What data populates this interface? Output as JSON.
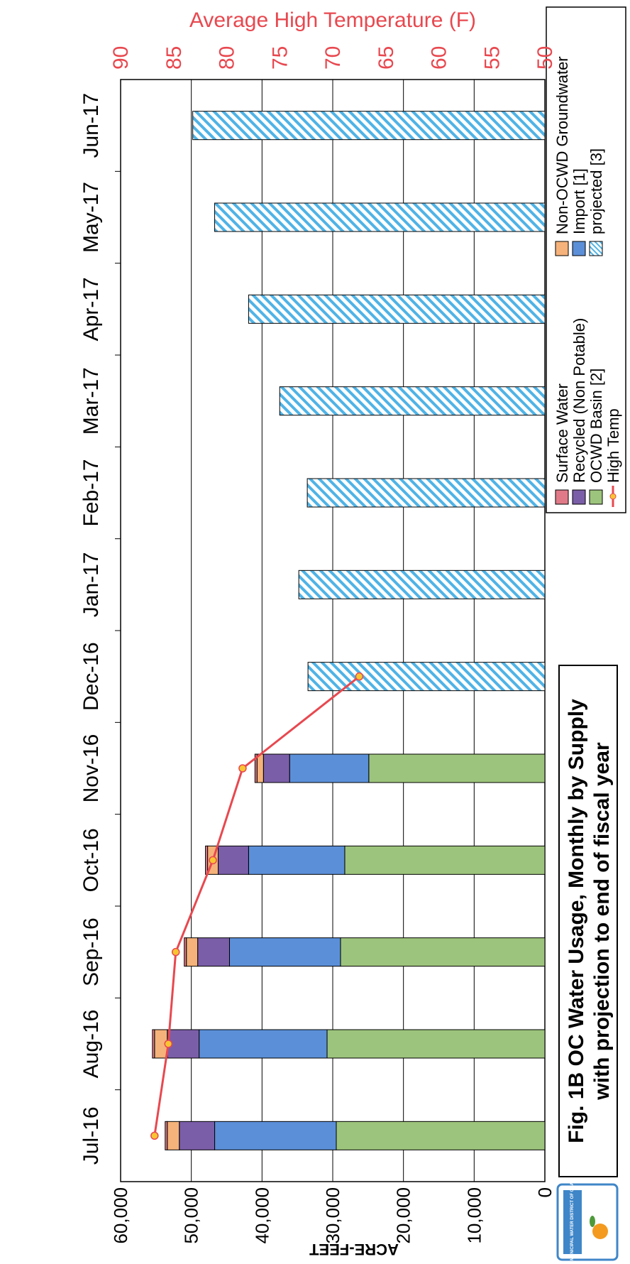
{
  "logo": {
    "text": "MUNICIPAL WATER DISTRICT OF ORANGE COUNTY"
  },
  "chart_data": {
    "type": "bar",
    "title": "Fig. 1B  OC Water Usage, Monthly by Supply",
    "subtitle": "with projection to end of fiscal year",
    "ylabel": "ACRE-FEET",
    "y2label": "Average High Temperature (F)",
    "ylim": [
      0,
      60000
    ],
    "y2lim": [
      50,
      90
    ],
    "yticks": [
      "0",
      "10,000",
      "20,000",
      "30,000",
      "40,000",
      "50,000",
      "60,000"
    ],
    "y2ticks": [
      "50",
      "55",
      "60",
      "65",
      "70",
      "75",
      "80",
      "85",
      "90"
    ],
    "categories": [
      "Jul-16",
      "Aug-16",
      "Sep-16",
      "Oct-16",
      "Nov-16",
      "Dec-16",
      "Jan-17",
      "Feb-17",
      "Mar-17",
      "Apr-17",
      "May-17",
      "Jun-17"
    ],
    "grid": true,
    "legend_position": "top-right",
    "series": [
      {
        "name": "OCWD Basin [2]",
        "color": "#9dc47c",
        "values": [
          29500,
          30800,
          28900,
          28300,
          24900,
          0,
          0,
          0,
          0,
          0,
          0,
          0
        ]
      },
      {
        "name": "Import [1]",
        "color": "#5b8fd8",
        "values": [
          17200,
          18100,
          15700,
          13600,
          11200,
          0,
          0,
          0,
          0,
          0,
          0,
          0
        ]
      },
      {
        "name": "Recycled (Non Potable)",
        "color": "#7b5ea8",
        "values": [
          5000,
          4500,
          4500,
          4300,
          3700,
          0,
          0,
          0,
          0,
          0,
          0,
          0
        ]
      },
      {
        "name": "Non-OCWD Groundwater",
        "color": "#f5b27a",
        "values": [
          1700,
          1800,
          1600,
          1500,
          900,
          0,
          0,
          0,
          0,
          0,
          0,
          0
        ]
      },
      {
        "name": "Surface Water",
        "color": "#e07a88",
        "values": [
          300,
          300,
          300,
          300,
          300,
          0,
          0,
          0,
          0,
          0,
          0,
          0
        ]
      },
      {
        "name": "projected [3]",
        "color": "#4fb3e6",
        "values": [
          0,
          0,
          0,
          0,
          0,
          33500,
          34800,
          33600,
          37500,
          41900,
          46700,
          49800
        ]
      }
    ],
    "line": {
      "name": "High Temp",
      "color": "#e8484f",
      "marker": "#f7c531",
      "values": [
        86.8,
        85.5,
        84.8,
        81.3,
        78.5,
        67.5,
        null,
        null,
        null,
        null,
        null,
        null
      ]
    }
  }
}
